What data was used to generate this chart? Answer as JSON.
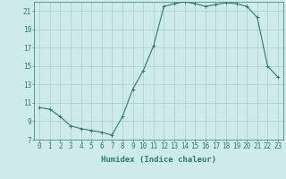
{
  "x": [
    0,
    1,
    2,
    3,
    4,
    5,
    6,
    7,
    8,
    9,
    10,
    11,
    12,
    13,
    14,
    15,
    16,
    17,
    18,
    19,
    20,
    21,
    22,
    23
  ],
  "y": [
    10.5,
    10.3,
    9.5,
    8.5,
    8.2,
    8.0,
    7.8,
    7.5,
    9.5,
    12.5,
    14.5,
    17.2,
    21.5,
    21.8,
    22.0,
    21.8,
    21.5,
    21.7,
    21.9,
    21.8,
    21.5,
    20.3,
    15.0,
    13.8
  ],
  "line_color": "#2d7a6e",
  "marker": "+",
  "marker_size": 3,
  "marker_lw": 0.7,
  "line_width": 0.8,
  "bg_color": "#ceeaea",
  "grid_color": "#a8cccc",
  "xlabel": "Humidex (Indice chaleur)",
  "ylim": [
    7,
    22
  ],
  "xlim": [
    -0.5,
    23.5
  ],
  "yticks": [
    7,
    9,
    11,
    13,
    15,
    17,
    19,
    21
  ],
  "xticks": [
    0,
    1,
    2,
    3,
    4,
    5,
    6,
    7,
    8,
    9,
    10,
    11,
    12,
    13,
    14,
    15,
    16,
    17,
    18,
    19,
    20,
    21,
    22,
    23
  ],
  "tick_fontsize": 5.5,
  "xlabel_fontsize": 6.5
}
